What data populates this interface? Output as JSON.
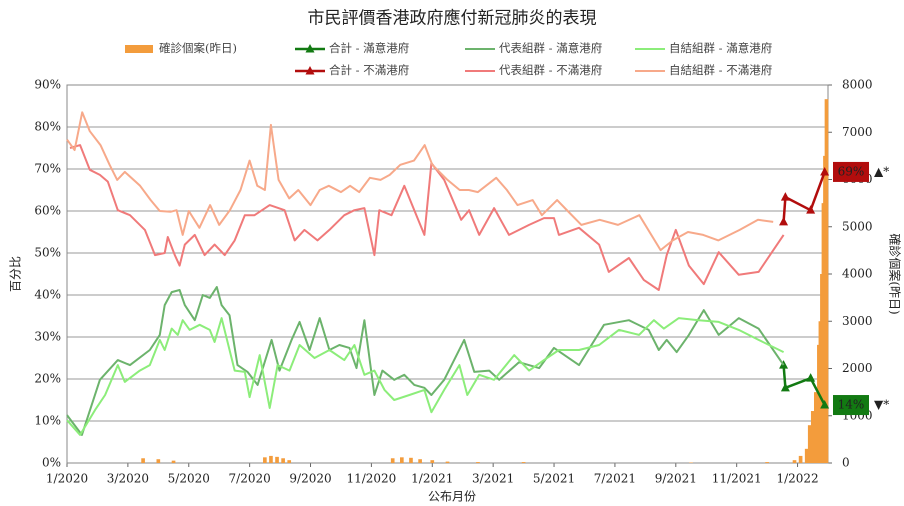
{
  "chart_data": {
    "type": "line",
    "title": "市民評價香港政府應付新冠肺炎的表現",
    "x_label": "公布月份",
    "y_label": "百分比",
    "y2_label": "確診個案(昨日)",
    "xlim": [
      0,
      25
    ],
    "xticks": [
      {
        "value": 0,
        "label": "1/2020"
      },
      {
        "value": 2,
        "label": "3/2020"
      },
      {
        "value": 4,
        "label": "5/2020"
      },
      {
        "value": 6,
        "label": "7/2020"
      },
      {
        "value": 8,
        "label": "9/2020"
      },
      {
        "value": 10,
        "label": "11/2020"
      },
      {
        "value": 12,
        "label": "1/2021"
      },
      {
        "value": 14,
        "label": "3/2021"
      },
      {
        "value": 16,
        "label": "5/2021"
      },
      {
        "value": 18,
        "label": "7/2021"
      },
      {
        "value": 20,
        "label": "9/2021"
      },
      {
        "value": 22,
        "label": "11/2021"
      },
      {
        "value": 24,
        "label": "1/2022"
      }
    ],
    "ylim": [
      0,
      90
    ],
    "yticks": [
      {
        "value": 0,
        "label": "0%"
      },
      {
        "value": 10,
        "label": "10%"
      },
      {
        "value": 20,
        "label": "20%"
      },
      {
        "value": 30,
        "label": "30%"
      },
      {
        "value": 40,
        "label": "40%"
      },
      {
        "value": 50,
        "label": "50%"
      },
      {
        "value": 60,
        "label": "60%"
      },
      {
        "value": 70,
        "label": "70%"
      },
      {
        "value": 80,
        "label": "80%"
      },
      {
        "value": 90,
        "label": "90%"
      }
    ],
    "y2lim": [
      0,
      8000
    ],
    "y2ticks": [
      0,
      1000,
      2000,
      3000,
      4000,
      5000,
      6000,
      7000,
      8000
    ],
    "grid": true,
    "series": [
      {
        "name": "確診個案(昨日)",
        "type": "bar",
        "axis": "y2",
        "color": "#f39c3c",
        "x": [
          2.5,
          3.0,
          3.5,
          6.5,
          6.7,
          6.9,
          7.1,
          7.3,
          10.7,
          11.0,
          11.3,
          11.6,
          12.0,
          12.5,
          13.5,
          15.0,
          20.5,
          23.0,
          23.9,
          24.1,
          24.3,
          24.4,
          24.5,
          24.6,
          24.7,
          24.75,
          24.8,
          24.85,
          24.9,
          24.95
        ],
        "values": [
          100,
          80,
          50,
          120,
          150,
          130,
          100,
          60,
          100,
          120,
          110,
          80,
          60,
          30,
          20,
          20,
          10,
          20,
          60,
          150,
          300,
          800,
          1100,
          1500,
          2500,
          3000,
          4000,
          5500,
          6500,
          7700
        ]
      },
      {
        "name": "合計 - 滿意港府",
        "type": "line",
        "markers": true,
        "color": "#127a12",
        "x": [
          23.54,
          23.6,
          24.43,
          24.89
        ],
        "values": [
          23.3,
          17.9,
          20.2,
          13.8
        ],
        "value_labels": [
          null,
          null,
          null,
          "14%"
        ]
      },
      {
        "name": "代表組群 - 滿意港府",
        "type": "line",
        "color": "#6cb36c",
        "x": [
          0,
          0.49,
          1.08,
          1.67,
          2.07,
          2.72,
          3.05,
          3.21,
          3.44,
          3.7,
          3.87,
          4.2,
          4.46,
          4.69,
          4.92,
          5.08,
          5.34,
          5.6,
          5.93,
          6.26,
          6.72,
          6.98,
          7.38,
          7.64,
          7.97,
          8.3,
          8.62,
          8.95,
          9.28,
          9.51,
          9.77,
          10.1,
          10.36,
          10.75,
          11.08,
          11.41,
          11.74,
          11.97,
          12.39,
          13.05,
          13.38,
          13.87,
          14.2,
          14.85,
          15.51,
          16.0,
          16.82,
          17.64,
          18.46,
          19.11,
          19.44,
          19.7,
          20.03,
          20.43,
          20.92,
          21.41,
          22.07,
          22.72,
          23.54
        ],
        "values": [
          11.4,
          6.7,
          19.8,
          24.5,
          23.3,
          26.9,
          30.5,
          37.6,
          40.7,
          41.2,
          37.6,
          34,
          40,
          39.3,
          41.9,
          37.6,
          35.2,
          23.3,
          21.7,
          18.6,
          29.3,
          22,
          29.3,
          33.6,
          26.9,
          34.5,
          26.9,
          28.1,
          27.4,
          22.6,
          34,
          16.2,
          22,
          19.8,
          21,
          18.6,
          17.9,
          16.2,
          19.8,
          29.3,
          21.7,
          22,
          19.8,
          24,
          22.6,
          27.4,
          23.3,
          32.9,
          34,
          31.7,
          26.9,
          29.3,
          26.4,
          30.5,
          36.4,
          30.5,
          34.5,
          32,
          23.3
        ]
      },
      {
        "name": "自結組群 - 滿意港府",
        "type": "line",
        "color": "#8ced7a",
        "x": [
          0,
          0.43,
          0.92,
          1.25,
          1.67,
          1.9,
          2.39,
          2.72,
          3.05,
          3.21,
          3.44,
          3.64,
          3.8,
          4.03,
          4.36,
          4.69,
          4.85,
          5.08,
          5.51,
          5.84,
          6.0,
          6.33,
          6.66,
          6.92,
          7.31,
          7.64,
          8.13,
          8.62,
          9.11,
          9.44,
          9.77,
          10.1,
          10.43,
          10.75,
          11.25,
          11.74,
          11.97,
          12.39,
          12.89,
          13.15,
          13.54,
          14.03,
          14.69,
          15.18,
          15.67,
          16.16,
          16.82,
          17.48,
          18.13,
          18.79,
          19.28,
          19.61,
          20.1,
          20.75,
          21.41,
          22.07,
          22.72,
          23.54
        ],
        "values": [
          10.2,
          6.7,
          12.6,
          16.2,
          23.3,
          19.3,
          22,
          23.3,
          29.3,
          26.9,
          32,
          30.5,
          34,
          31.7,
          32.9,
          31.7,
          28.8,
          34.5,
          22,
          21.7,
          15.7,
          25.7,
          13.1,
          23.3,
          22,
          28.1,
          25,
          26.9,
          24.5,
          28.1,
          21,
          22,
          17.4,
          15,
          16.2,
          17.4,
          12.1,
          17.4,
          23.3,
          16.2,
          21,
          19.8,
          25.7,
          22,
          24.5,
          26.9,
          26.9,
          28.1,
          31.7,
          30.5,
          34,
          32,
          34.5,
          34,
          33.6,
          31.7,
          29.3,
          26.4
        ]
      },
      {
        "name": "合計 - 不滿港府",
        "type": "line",
        "markers": true,
        "color": "#b20d0d",
        "x": [
          23.54,
          23.6,
          24.43,
          24.89
        ],
        "values": [
          57.4,
          63.3,
          60.2,
          69.3
        ],
        "value_labels": [
          null,
          null,
          null,
          "69%"
        ]
      },
      {
        "name": "代表組群 - 不滿港府",
        "type": "line",
        "color": "#f07a7a",
        "x": [
          0.1,
          0.43,
          0.75,
          1.08,
          1.34,
          1.67,
          2.07,
          2.56,
          2.89,
          3.21,
          3.31,
          3.54,
          3.7,
          3.87,
          4.2,
          4.52,
          4.85,
          5.18,
          5.51,
          5.84,
          6.16,
          6.66,
          7.15,
          7.48,
          7.8,
          8.23,
          8.62,
          9.11,
          9.44,
          9.77,
          10.1,
          10.26,
          10.66,
          11.08,
          11.41,
          11.74,
          11.97,
          12.39,
          12.95,
          13.21,
          13.54,
          14.03,
          14.52,
          15.18,
          15.67,
          16.0,
          16.16,
          16.82,
          17.48,
          17.8,
          18.46,
          18.95,
          19.44,
          19.7,
          20.0,
          20.43,
          20.92,
          21.41,
          22.07,
          22.72,
          23.54
        ],
        "values": [
          75,
          75.7,
          69.8,
          68.6,
          67,
          60.2,
          59,
          55.5,
          49.5,
          50,
          53.8,
          49.5,
          47,
          52,
          54.3,
          49.5,
          52,
          49.5,
          53,
          59,
          59,
          61.4,
          60.2,
          53,
          55.5,
          53,
          55.5,
          59,
          60.2,
          60.7,
          49.5,
          60.2,
          59,
          66,
          60.2,
          54.3,
          71.4,
          67.4,
          57.9,
          60.2,
          54.3,
          60.7,
          54.3,
          56.7,
          58.3,
          58.3,
          54.3,
          56,
          52,
          45.5,
          48.8,
          43.6,
          41.2,
          49.5,
          55.5,
          47,
          42.6,
          50.2,
          44.8,
          45.5,
          54.3
        ]
      },
      {
        "name": "自結組群 - 不滿港府",
        "type": "line",
        "color": "#f7a98a",
        "x": [
          0,
          0.25,
          0.5,
          0.75,
          1.1,
          1.4,
          1.65,
          1.9,
          2.4,
          2.75,
          3.05,
          3.4,
          3.6,
          3.8,
          4.0,
          4.35,
          4.7,
          5.0,
          5.35,
          5.7,
          6.0,
          6.25,
          6.5,
          6.7,
          6.95,
          7.3,
          7.6,
          8.0,
          8.3,
          8.6,
          9.0,
          9.3,
          9.6,
          9.95,
          10.3,
          10.6,
          10.95,
          11.4,
          11.75,
          12.0,
          12.5,
          12.9,
          13.2,
          13.5,
          14.1,
          14.45,
          14.8,
          15.3,
          15.6,
          16.1,
          16.45,
          16.9,
          17.5,
          18.1,
          18.8,
          19.5,
          19.9,
          20.4,
          20.9,
          21.4,
          22.1,
          22.7,
          23.2
        ],
        "values": [
          77,
          74.5,
          83.5,
          79,
          75.7,
          71,
          67.4,
          69.3,
          66,
          62.6,
          60,
          59.8,
          60.2,
          54.3,
          60,
          56,
          61.4,
          56.7,
          60.2,
          65,
          72,
          66,
          65,
          80.5,
          67.4,
          63,
          65,
          61.4,
          65,
          66,
          64.5,
          66,
          64.5,
          67.9,
          67.4,
          68.6,
          71,
          72,
          75.7,
          71,
          67.4,
          65,
          65,
          64.5,
          67.9,
          65,
          61.4,
          62.6,
          59,
          62.6,
          60,
          56.7,
          57.9,
          56.7,
          59,
          50.7,
          53,
          55,
          54.3,
          53,
          55.5,
          57.9,
          57.4
        ]
      }
    ],
    "annotations": [
      {
        "text": "▼*",
        "color": "#e00000"
      },
      {
        "text": "▲*",
        "color": "#1aa31a"
      }
    ]
  }
}
